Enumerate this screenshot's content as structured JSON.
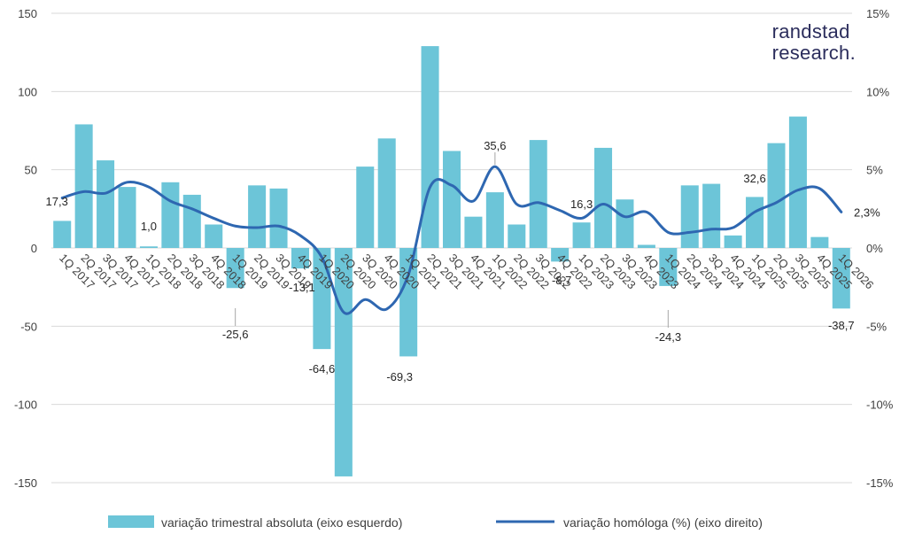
{
  "brand": {
    "line1": "randstad",
    "line2": "research."
  },
  "chart_data": {
    "type": "bar+line",
    "categories": [
      "1Q 2017",
      "2Q 2017",
      "3Q 2017",
      "4Q 2017",
      "1Q 2018",
      "2Q 2018",
      "3Q 2018",
      "4Q 2018",
      "1Q 2019",
      "2Q 2019",
      "3Q 2019",
      "4Q 2019",
      "1Q 2020",
      "2Q 2020",
      "3Q 2020",
      "4Q 2020",
      "1Q 2021",
      "2Q 2021",
      "3Q 2021",
      "4Q 2021",
      "1Q 2022",
      "2Q 2022",
      "3Q 2022",
      "4Q 2022",
      "1Q 2023",
      "2Q 2023",
      "3Q 2023",
      "4Q 2023",
      "1Q 2024",
      "2Q 2024",
      "3Q 2024",
      "4Q 2024",
      "1Q 2025",
      "2Q 2025",
      "3Q 2025",
      "4Q 2025",
      "1Q 2026"
    ],
    "series": [
      {
        "name": "variação trimestral absoluta (eixo esquerdo)",
        "axis": "left",
        "kind": "bar",
        "color": "#6cc5d8",
        "values": [
          17.3,
          79,
          56,
          39,
          1.0,
          42,
          34,
          15,
          -25.6,
          40,
          38,
          -13.1,
          -64.6,
          -146,
          52,
          70,
          -69.3,
          129,
          62,
          20,
          35.6,
          15,
          69,
          -8.7,
          16.3,
          64,
          31,
          2,
          -24.3,
          40,
          41,
          8,
          32.6,
          67,
          84,
          7,
          -38.7
        ]
      },
      {
        "name": "variação homóloga (%) (eixo direito)",
        "axis": "right",
        "kind": "line",
        "color": "#2e67b1",
        "values": [
          3.2,
          3.6,
          3.5,
          4.2,
          3.9,
          3.0,
          2.5,
          1.9,
          1.4,
          1.3,
          1.4,
          0.8,
          -0.6,
          -4.1,
          -3.3,
          -3.9,
          -1.7,
          3.9,
          4.0,
          3.0,
          5.2,
          2.8,
          2.9,
          2.4,
          1.9,
          2.8,
          2.0,
          2.3,
          1.0,
          1.0,
          1.2,
          1.3,
          2.3,
          2.9,
          3.7,
          3.8,
          2.3
        ]
      }
    ],
    "data_labels": [
      {
        "index": 0,
        "text": "17,3"
      },
      {
        "index": 4,
        "text": "1,0"
      },
      {
        "index": 8,
        "text": "-25,6"
      },
      {
        "index": 11,
        "text": "-13,1"
      },
      {
        "index": 12,
        "text": "-64,6"
      },
      {
        "index": 16,
        "text": "-69,3"
      },
      {
        "index": 20,
        "text": "35,6"
      },
      {
        "index": 23,
        "text": "-8,7"
      },
      {
        "index": 24,
        "text": "16,3"
      },
      {
        "index": 28,
        "text": "-24,3"
      },
      {
        "index": 32,
        "text": "32,6"
      },
      {
        "index": 36,
        "text": "-38,7"
      },
      {
        "index": 36,
        "series": 1,
        "text": "2,3%"
      }
    ],
    "y_left": {
      "ylim": [
        -150,
        150
      ],
      "ticks": [
        -150,
        -100,
        -50,
        0,
        50,
        100,
        150
      ],
      "tick_labels": [
        "-150",
        "-100",
        "-50",
        "0",
        "50",
        "100",
        "150"
      ]
    },
    "y_right": {
      "ylim": [
        -15,
        15
      ],
      "ticks": [
        -15,
        -10,
        -5,
        0,
        5,
        10,
        15
      ],
      "tick_labels": [
        "-15%",
        "-10%",
        "-5%",
        "0%",
        "5%",
        "10%",
        "15%"
      ]
    },
    "grid": true,
    "legend_position": "bottom",
    "title": "",
    "xlabel": "",
    "ylabel": ""
  }
}
